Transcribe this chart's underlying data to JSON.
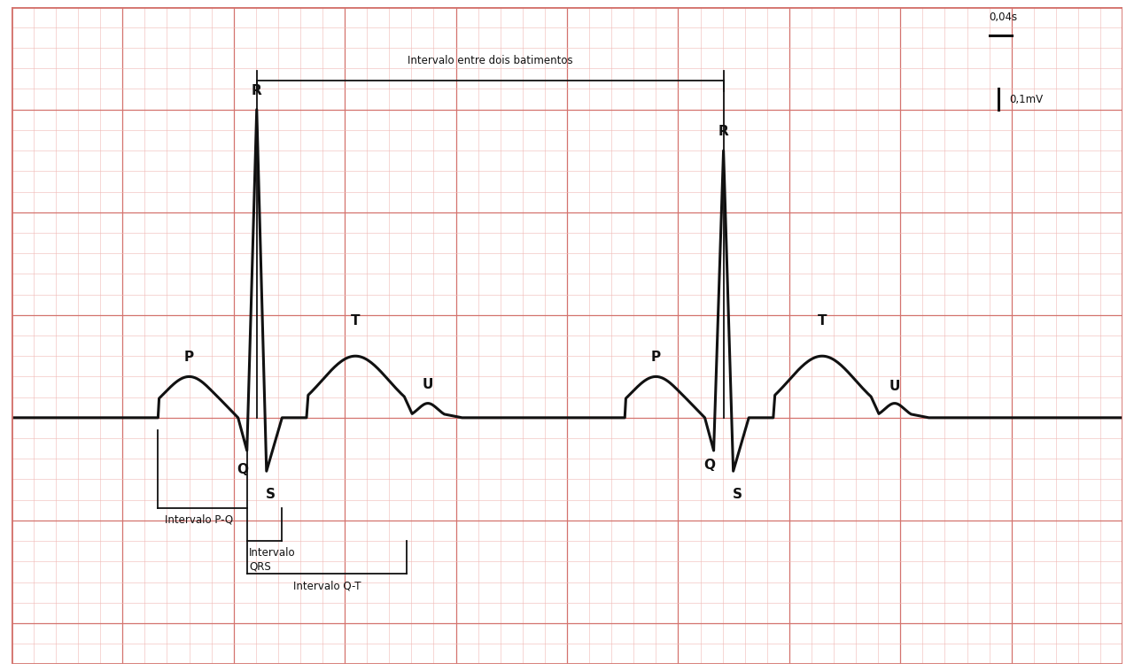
{
  "bg_color": "#ffffff",
  "grid_major_color": "#d4736e",
  "grid_minor_color": "#f0b8b5",
  "ecg_color": "#111111",
  "ann_color": "#111111",
  "figsize": [
    12.8,
    7.58
  ],
  "dpi": 100,
  "xlim": [
    0,
    25
  ],
  "ylim": [
    -6,
    10
  ],
  "baseline_y": 0.0,
  "beat1_start": 2.5,
  "beat2_start": 13.0,
  "p_amp": 1.0,
  "p_sigma": 0.55,
  "q_depth": -0.8,
  "r1_height": 7.5,
  "r2_height": 6.5,
  "s_depth": -1.3,
  "t_amp": 1.5,
  "t_sigma": 0.75,
  "u_amp": 0.35,
  "u_sigma": 0.22,
  "ecg_lw": 2.2,
  "ann_lw": 1.3,
  "ann_fs": 8.5,
  "label_fs": 11
}
